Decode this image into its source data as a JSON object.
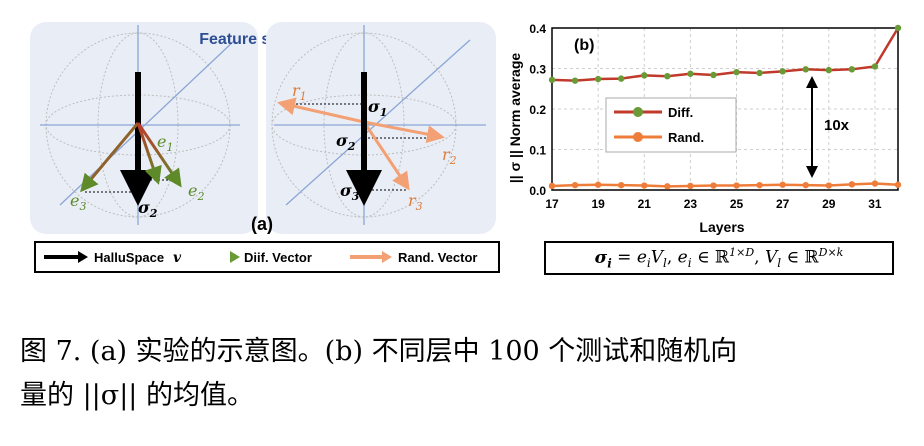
{
  "figure_a": {
    "title": "Feature space",
    "panel_label": "(a)",
    "left_labels": {
      "e1": "e",
      "e1_sub": "1",
      "e2": "e",
      "e2_sub": "2",
      "e3": "e",
      "e3_sub": "3",
      "sigma2": "σ",
      "sigma2_sub": "2"
    },
    "right_labels": {
      "r1": "r",
      "r1_sub": "1",
      "r2": "r",
      "r2_sub": "2",
      "r3": "r",
      "r3_sub": "3",
      "sigma1": "σ",
      "sigma1_sub": "1",
      "sigma2": "σ",
      "sigma2_sub": "2",
      "sigma3": "σ",
      "sigma3_sub": "3"
    },
    "colors": {
      "panel_bg": "#e9eef6",
      "axis": "#8aa6d6",
      "circle": "#b9b9b9",
      "green": "#6a8f2f",
      "red": "#c0392b",
      "orange": "#f2a074"
    }
  },
  "legend": {
    "items": [
      {
        "label": "HalluSpace",
        "symbol": "v"
      },
      {
        "label": "Diif. Vector"
      },
      {
        "label": "Rand. Vector"
      }
    ]
  },
  "chart_data": {
    "type": "line",
    "panel_label": "(b)",
    "xlabel": "Layers",
    "ylabel": "|| σ || Norm average",
    "x_ticks": [
      17,
      19,
      21,
      23,
      25,
      27,
      29,
      31
    ],
    "y_ticks": [
      "0.0",
      "0.1",
      "0.2",
      "0.3",
      "0.4"
    ],
    "ylim": [
      0,
      0.4
    ],
    "xlim": [
      17,
      32
    ],
    "x": [
      17,
      18,
      19,
      20,
      21,
      22,
      23,
      24,
      25,
      26,
      27,
      28,
      29,
      30,
      31,
      32
    ],
    "series": [
      {
        "name": "Diff.",
        "color": "#6a9a35",
        "line_color": "#c0392b",
        "values": [
          0.272,
          0.27,
          0.274,
          0.275,
          0.283,
          0.281,
          0.287,
          0.284,
          0.291,
          0.289,
          0.293,
          0.298,
          0.296,
          0.298,
          0.305,
          0.4
        ]
      },
      {
        "name": "Rand.",
        "color": "#ee7d3a",
        "line_color": "#ee7d3a",
        "values": [
          0.01,
          0.012,
          0.013,
          0.012,
          0.011,
          0.009,
          0.01,
          0.011,
          0.011,
          0.012,
          0.013,
          0.012,
          0.011,
          0.014,
          0.016,
          0.013
        ]
      }
    ],
    "annotation": "10x",
    "grid": true,
    "legend_position": "center-left"
  },
  "formula": {
    "sigma": "σ",
    "sigma_sub": "i",
    "eq": " = ",
    "e": "e",
    "e_sub": "i",
    "V": "V",
    "V_sub": "l",
    "sep1": ", ",
    "e2": "e",
    "e2_sub": "i",
    "in1": " ∈ ℝ",
    "dim1": "1×D",
    "sep2": ", ",
    "V2": "V",
    "V2_sub": "l",
    "in2": " ∈ ℝ",
    "dim2": "D×k"
  },
  "caption": {
    "line1": "图 7. (a) 实验的示意图。(b) 不同层中 100 个测试和随机向",
    "line2": "量的 ||σ|| 的均值。"
  }
}
